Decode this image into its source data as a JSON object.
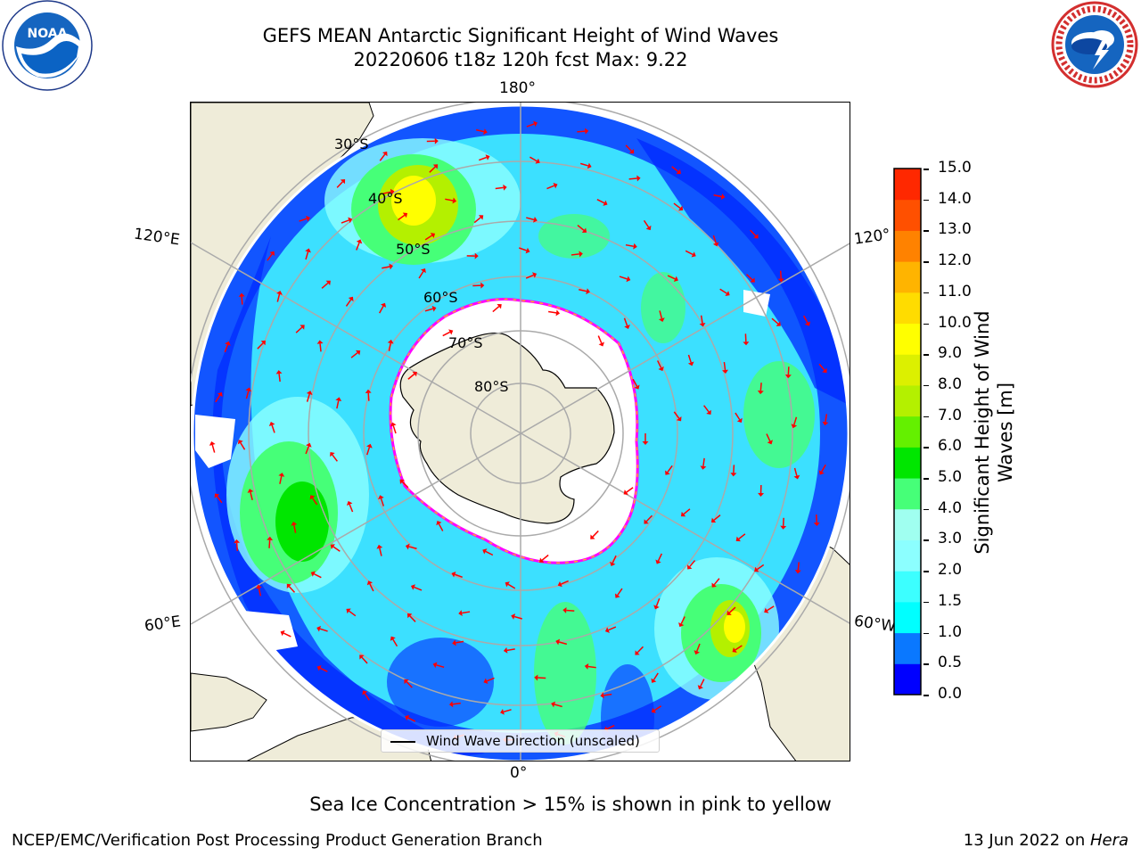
{
  "title": {
    "line1": "GEFS MEAN Antarctic Significant Height of Wind Waves",
    "line2": "20220606 t18z 120h fcst   Max: 9.22"
  },
  "logos": {
    "left": {
      "name": "NOAA",
      "ring_text": "NATIONAL OCEANIC AND ATMOSPHERIC ADMINISTRATION",
      "bottom_text": "U.S. DEPARTMENT OF COMMERCE",
      "icon": "noaa-logo"
    },
    "right": {
      "name": "NATIONAL WEATHER SERVICE",
      "icon": "nws-logo"
    }
  },
  "map": {
    "projection": "south polar stereographic",
    "longitude_labels": {
      "top": "180°",
      "bottom": "0°",
      "left_upper": "120°E",
      "left_lower": "60°E",
      "right_upper": "120°",
      "right_lower": "60°W"
    },
    "latitude_labels": [
      "30°S",
      "40°S",
      "50°S",
      "60°S",
      "70°S",
      "80°S"
    ],
    "legend": {
      "label": "Wind Wave Direction (unscaled)"
    },
    "arrow_color": "#ff0000",
    "land_color": "#efecd9",
    "ice_edge_colors": [
      "#ff00ff",
      "#ff66cc",
      "#ffcc00"
    ]
  },
  "colorbar": {
    "title": "Significant Height of Wind Waves [m]",
    "title_line1": "Significant Height of Wind",
    "title_line2": "Waves [m]",
    "ticks": [
      "0.0",
      "0.5",
      "1.0",
      "1.5",
      "2.0",
      "3.0",
      "4.0",
      "5.0",
      "6.0",
      "7.0",
      "8.0",
      "9.0",
      "10.0",
      "11.0",
      "12.0",
      "13.0",
      "14.0",
      "15.0"
    ],
    "colors": [
      "#0000ff",
      "#0a78ff",
      "#00ffff",
      "#3cffff",
      "#8cffff",
      "#a0fff0",
      "#46ff78",
      "#00e600",
      "#64f000",
      "#b4f000",
      "#dcf000",
      "#ffff00",
      "#ffdc00",
      "#ffb400",
      "#ff8200",
      "#ff5000",
      "#ff2800",
      "#ff0000"
    ]
  },
  "annotation": "Sea Ice Concentration > 15% is shown in pink to yellow",
  "footer": {
    "left": "NCEP/EMC/Verification Post Processing Product Generation Branch",
    "right_prefix": "13 Jun 2022 on ",
    "right_italic": "Hera"
  }
}
